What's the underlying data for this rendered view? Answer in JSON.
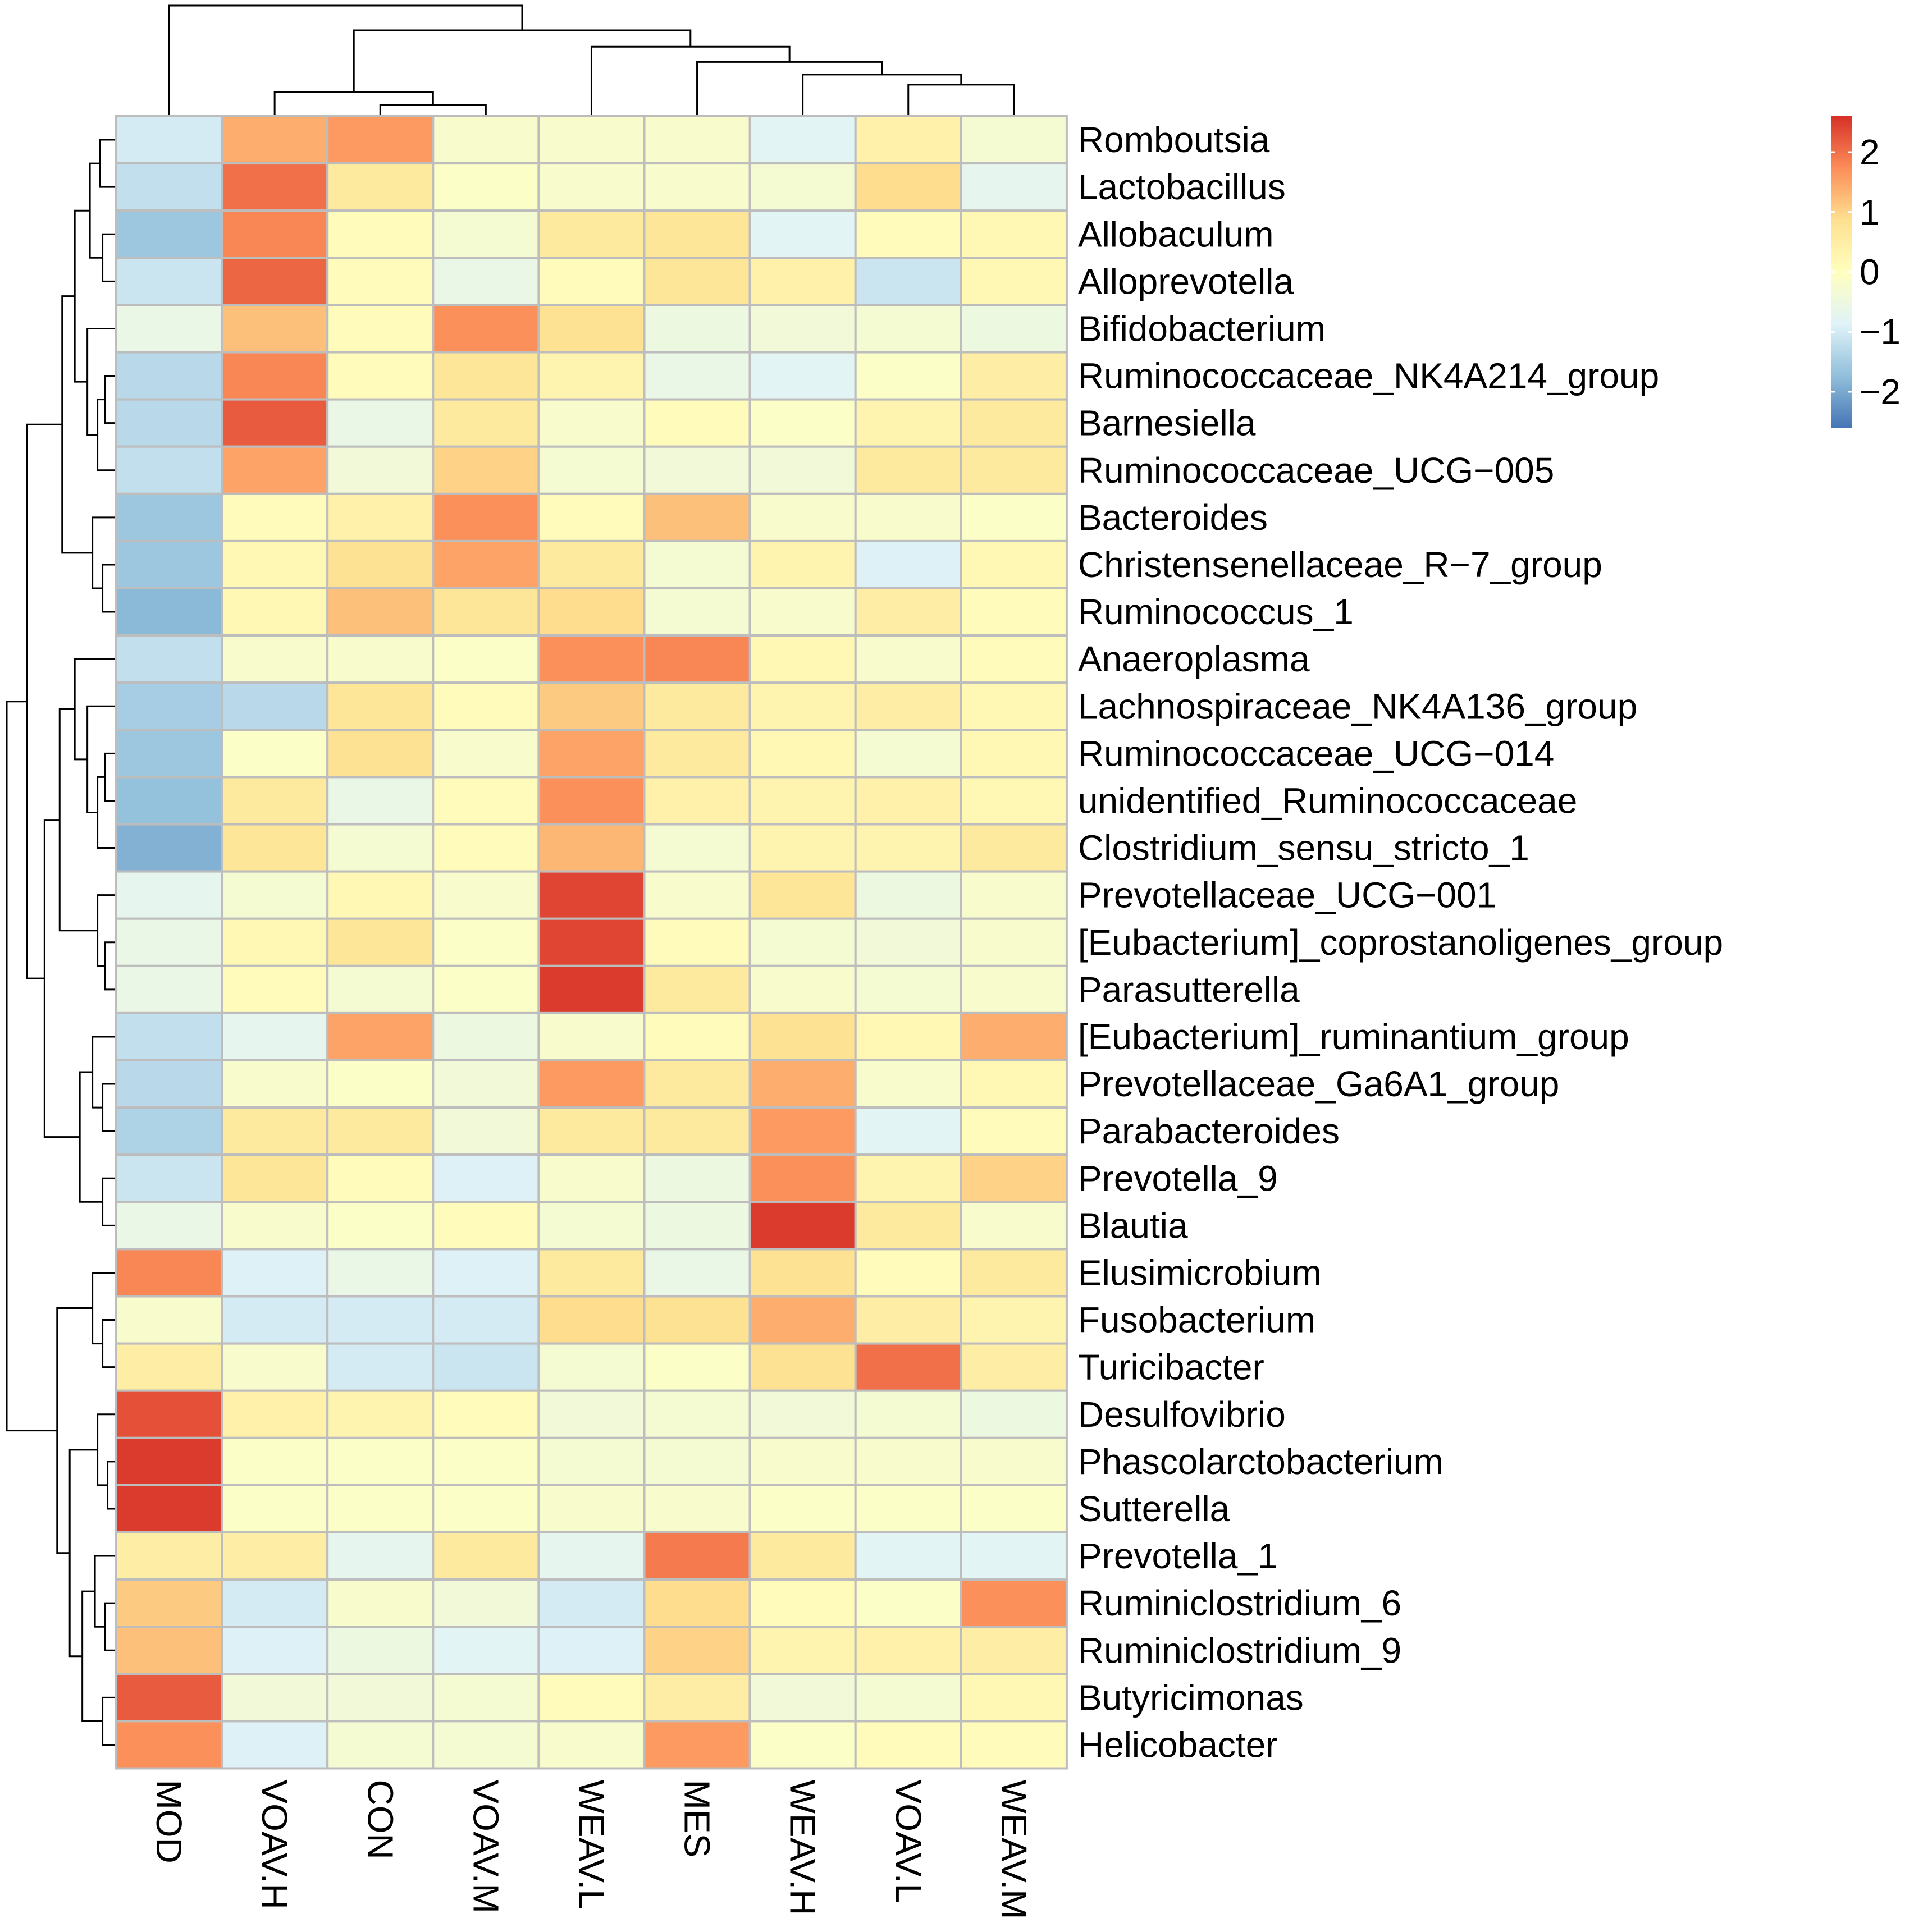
{
  "chart_data": {
    "type": "heatmap",
    "title": "",
    "columns": [
      "MOD",
      "VOAV.H",
      "CON",
      "VOAV.M",
      "WEAV.L",
      "MES",
      "WEAV.H",
      "VOAV.L",
      "WEAV.M"
    ],
    "rows": [
      "Romboutsia",
      "Lactobacillus",
      "Allobaculum",
      "Alloprevotella",
      "Bifidobacterium",
      "Ruminococcaceae_NK4A214_group",
      "Barnesiella",
      "Ruminococcaceae_UCG−005",
      "Bacteroides",
      "Christensenellaceae_R−7_group",
      "Ruminococcus_1",
      "Anaeroplasma",
      "Lachnospiraceae_NK4A136_group",
      "Ruminococcaceae_UCG−014",
      "unidentified_Ruminococcaceae",
      "Clostridium_sensu_stricto_1",
      "Prevotellaceae_UCG−001",
      "[Eubacterium]_coprostanoligenes_group",
      "Parasutterella",
      "[Eubacterium]_ruminantium_group",
      "Prevotellaceae_Ga6A1_group",
      "Parabacteroides",
      "Prevotella_9",
      "Blautia",
      "Elusimicrobium",
      "Fusobacterium",
      "Turicibacter",
      "Desulfovibrio",
      "Phascolarctobacterium",
      "Sutterella",
      "Prevotella_1",
      "Ruminiclostridium_6",
      "Ruminiclostridium_9",
      "Butyricimonas",
      "Helicobacter"
    ],
    "values": [
      [
        -1.0,
        1.4,
        1.6,
        -0.2,
        -0.2,
        -0.2,
        -0.8,
        0.4,
        -0.3
      ],
      [
        -1.2,
        2.0,
        0.6,
        -0.1,
        -0.2,
        -0.2,
        -0.3,
        0.9,
        -0.7
      ],
      [
        -1.6,
        1.8,
        0.1,
        -0.3,
        0.6,
        0.7,
        -0.8,
        0.1,
        0.2
      ],
      [
        -1.1,
        2.1,
        0.1,
        -0.6,
        0.1,
        0.7,
        0.4,
        -1.1,
        0.2
      ],
      [
        -0.6,
        1.2,
        0.1,
        1.7,
        0.8,
        -0.5,
        -0.4,
        -0.3,
        -0.5
      ],
      [
        -1.3,
        1.8,
        0.1,
        0.7,
        0.3,
        -0.6,
        -0.8,
        -0.1,
        0.5
      ],
      [
        -1.3,
        2.2,
        -0.6,
        0.6,
        -0.2,
        0.1,
        -0.1,
        0.3,
        0.6
      ],
      [
        -1.2,
        1.5,
        -0.4,
        1.0,
        -0.3,
        -0.4,
        -0.4,
        0.6,
        0.6
      ],
      [
        -1.6,
        0.1,
        0.4,
        1.7,
        0.1,
        1.2,
        -0.2,
        -0.2,
        -0.1
      ],
      [
        -1.6,
        0.2,
        0.8,
        1.5,
        0.6,
        -0.3,
        0.3,
        -0.9,
        0.2
      ],
      [
        -1.8,
        0.2,
        1.2,
        0.7,
        0.9,
        -0.3,
        -0.2,
        0.5,
        0.1
      ],
      [
        -1.2,
        -0.2,
        -0.2,
        -0.1,
        1.7,
        1.8,
        0.2,
        -0.2,
        0.1
      ],
      [
        -1.5,
        -1.3,
        0.7,
        0.1,
        1.1,
        0.6,
        0.3,
        0.5,
        0.2
      ],
      [
        -1.6,
        -0.1,
        0.8,
        -0.2,
        1.5,
        0.6,
        0.2,
        -0.3,
        0.2
      ],
      [
        -1.7,
        0.6,
        -0.6,
        0.1,
        1.7,
        0.4,
        0.3,
        0.4,
        0.2
      ],
      [
        -1.9,
        0.7,
        -0.3,
        0.1,
        1.3,
        -0.3,
        0.3,
        0.3,
        0.6
      ],
      [
        -0.7,
        -0.3,
        0.2,
        -0.2,
        2.4,
        -0.2,
        0.7,
        -0.5,
        -0.2
      ],
      [
        -0.6,
        0.2,
        0.7,
        -0.1,
        2.4,
        0.1,
        -0.3,
        -0.4,
        -0.2
      ],
      [
        -0.6,
        0.1,
        -0.3,
        -0.1,
        2.5,
        0.6,
        -0.2,
        -0.3,
        -0.2
      ],
      [
        -1.2,
        -0.7,
        1.5,
        -0.5,
        -0.2,
        0.1,
        0.8,
        0.2,
        1.4
      ],
      [
        -1.3,
        -0.2,
        -0.1,
        -0.4,
        1.6,
        0.6,
        1.4,
        -0.2,
        0.2
      ],
      [
        -1.4,
        0.6,
        0.6,
        -0.4,
        0.6,
        0.6,
        1.6,
        -0.8,
        0.1
      ],
      [
        -1.1,
        0.7,
        0.1,
        -0.9,
        -0.2,
        -0.5,
        1.7,
        0.3,
        1.0
      ],
      [
        -0.6,
        -0.2,
        -0.1,
        0.1,
        -0.3,
        -0.5,
        2.5,
        0.6,
        -0.2
      ],
      [
        1.8,
        -0.9,
        -0.6,
        -0.9,
        0.6,
        -0.6,
        0.8,
        0.1,
        0.6
      ],
      [
        -0.2,
        -1.0,
        -1.0,
        -1.0,
        0.9,
        0.8,
        1.4,
        0.5,
        0.3
      ],
      [
        0.5,
        -0.2,
        -1.0,
        -1.1,
        -0.3,
        -0.1,
        0.8,
        2.0,
        0.5
      ],
      [
        2.3,
        0.4,
        0.3,
        0.1,
        -0.4,
        -0.3,
        -0.4,
        -0.3,
        -0.5
      ],
      [
        2.5,
        -0.1,
        -0.1,
        -0.1,
        -0.3,
        -0.3,
        -0.2,
        -0.2,
        -0.2
      ],
      [
        2.5,
        -0.1,
        -0.1,
        -0.1,
        -0.2,
        -0.2,
        -0.1,
        -0.1,
        -0.1
      ],
      [
        0.5,
        0.5,
        -0.7,
        0.6,
        -0.7,
        1.9,
        0.6,
        -0.8,
        -0.8
      ],
      [
        1.1,
        -1.0,
        -0.2,
        -0.4,
        -1.0,
        0.9,
        0.1,
        -0.1,
        1.7
      ],
      [
        1.2,
        -0.9,
        -0.5,
        -0.8,
        -0.9,
        1.0,
        0.3,
        0.4,
        0.5
      ],
      [
        2.2,
        -0.4,
        -0.4,
        -0.3,
        0.1,
        0.5,
        -0.4,
        -0.3,
        0.2
      ],
      [
        1.7,
        -0.9,
        -0.3,
        -0.3,
        -0.2,
        1.6,
        -0.1,
        0.1,
        0.1
      ]
    ],
    "color_scale": {
      "range": [
        -2.6,
        2.6
      ],
      "stops": [
        "#4575b4",
        "#91bfdb",
        "#e0f3f8",
        "#ffffbf",
        "#fee090",
        "#fc8d59",
        "#d73027"
      ]
    },
    "legend": {
      "position": "top-right",
      "ticks": [
        2,
        1,
        0,
        -1,
        -2
      ],
      "tick_labels": [
        "2",
        "1",
        "0",
        "−1",
        "−2"
      ]
    },
    "column_dendrogram": true,
    "row_dendrogram": true,
    "grid": false
  }
}
